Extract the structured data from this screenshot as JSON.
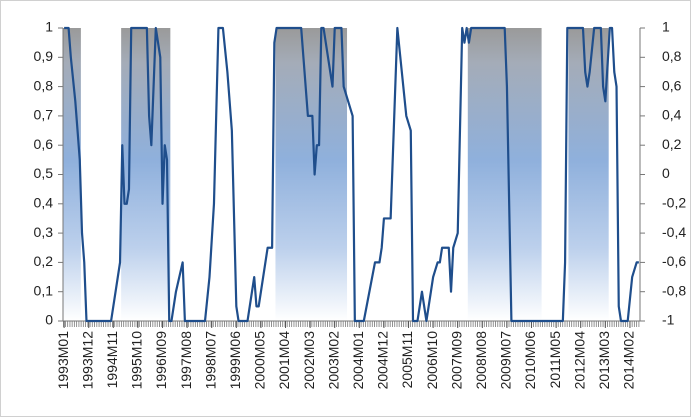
{
  "chart_data": {
    "type": "line",
    "x": [
      "1993M01",
      "1993M03",
      "1993M04",
      "1993M06",
      "1993M08",
      "1993M09",
      "1993M10",
      "1993M11",
      "1994M10",
      "1995M02",
      "1995M03",
      "1995M04",
      "1995M05",
      "1995M06",
      "1995M07",
      "1996M02",
      "1996M03",
      "1996M04",
      "1996M06",
      "1996M08",
      "1996M09",
      "1996M10",
      "1996M11",
      "1996M12",
      "1997M01",
      "1997M03",
      "1997M06",
      "1997M07",
      "1998M04",
      "1998M06",
      "1998M08",
      "1998M10",
      "1998M12",
      "1999M02",
      "1999M04",
      "1999M06",
      "1999M07",
      "1999M11",
      "2000M01",
      "2000M02",
      "2000M03",
      "2000M04",
      "2000M08",
      "2000M10",
      "2000M11",
      "2000M12",
      "2001M11",
      "2001M12",
      "2002M02",
      "2002M04",
      "2002M05",
      "2002M06",
      "2002M07",
      "2002M08",
      "2002M09",
      "2002M12",
      "2003M01",
      "2003M02",
      "2003M05",
      "2003M06",
      "2003M10",
      "2003M11",
      "2004M03",
      "2004M08",
      "2004M10",
      "2004M11",
      "2004M12",
      "2005M03",
      "2005M06",
      "2005M08",
      "2005M10",
      "2005M12",
      "2006M01",
      "2006M03",
      "2006M05",
      "2006M07",
      "2006M08",
      "2006M10",
      "2006M12",
      "2007M01",
      "2007M02",
      "2007M05",
      "2007M06",
      "2007M07",
      "2007M09",
      "2007M11",
      "2007M12",
      "2008M01",
      "2008M02",
      "2008M03",
      "2009M06",
      "2009M07",
      "2009M09",
      "2011M08",
      "2011M09",
      "2011M10",
      "2012M05",
      "2012M06",
      "2012M07",
      "2012M08",
      "2012M10",
      "2013M01",
      "2013M02",
      "2013M03",
      "2013M05",
      "2013M06",
      "2013M07",
      "2013M08",
      "2013M09",
      "2013M10",
      "2014M01",
      "2014M03",
      "2014M05",
      "2014M06"
    ],
    "values": [
      1,
      1,
      0.9,
      0.75,
      0.55,
      0.3,
      0.2,
      0,
      0,
      0.2,
      0.6,
      0.4,
      0.4,
      0.45,
      1,
      1,
      0.7,
      0.6,
      1,
      0.9,
      0.4,
      0.6,
      0.55,
      0,
      0,
      0.1,
      0.2,
      0,
      0,
      0.15,
      0.4,
      1,
      1,
      0.85,
      0.65,
      0.05,
      0,
      0,
      0.1,
      0.15,
      0.05,
      0.05,
      0.25,
      0.25,
      0.95,
      1,
      1,
      0.9,
      0.7,
      0.7,
      0.5,
      0.6,
      0.6,
      1,
      1,
      0.85,
      0.8,
      1,
      1,
      0.8,
      0.7,
      0,
      0,
      0.2,
      0.2,
      0.25,
      0.35,
      0.35,
      1,
      0.85,
      0.7,
      0.65,
      0,
      0,
      0.1,
      0,
      0.05,
      0.15,
      0.2,
      0.2,
      0.25,
      0.25,
      0.1,
      0.25,
      0.3,
      1,
      0.95,
      1,
      0.95,
      1,
      1,
      0.8,
      0,
      0,
      0.2,
      1,
      1,
      0.85,
      0.8,
      0.85,
      1,
      1,
      0.8,
      0.75,
      1,
      1,
      0.85,
      0.8,
      0.05,
      0,
      0,
      0.15,
      0.2,
      0.2
    ],
    "color": "#1f4e8c",
    "bands": [
      {
        "start": "1993M01",
        "end": "1993M08"
      },
      {
        "start": "1995M03",
        "end": "1996M12"
      },
      {
        "start": "2000M12",
        "end": "2003M07"
      },
      {
        "start": "2008M02",
        "end": "2010M10"
      },
      {
        "start": "2011M11",
        "end": "2013M04"
      }
    ],
    "xlim": [
      "1993M01",
      "2014M06"
    ],
    "xticks": [
      "1993M01",
      "1993M12",
      "1994M11",
      "1995M10",
      "1996M09",
      "1997M08",
      "1998M07",
      "1999M06",
      "2000M05",
      "2001M04",
      "2002M03",
      "2003M02",
      "2004M01",
      "2004M12",
      "2005M11",
      "2006M10",
      "2007M09",
      "2008M08",
      "2009M07",
      "2010M06",
      "2011M05",
      "2012M04",
      "2013M03",
      "2014M02"
    ],
    "ylim": [
      0,
      1
    ],
    "yticks": [
      0,
      {
        "value": 0.1,
        "label": "0,1"
      },
      {
        "value": 0.2,
        "label": "0,2"
      },
      {
        "value": 0.3,
        "label": "0,3"
      },
      {
        "value": 0.4,
        "label": "0,4"
      },
      {
        "value": 0.5,
        "label": "0,5"
      },
      {
        "value": 0.6,
        "label": "0,6"
      },
      {
        "value": 0.7,
        "label": "0,7"
      },
      {
        "value": 0.8,
        "label": "0,8"
      },
      {
        "value": 0.9,
        "label": "0,9"
      },
      1
    ],
    "y2lim": [
      -1,
      1
    ],
    "y2ticks": [
      -1,
      {
        "value": -0.8,
        "label": "-0,8"
      },
      {
        "value": -0.6,
        "label": "-0,6"
      },
      {
        "value": -0.4,
        "label": "-0,4"
      },
      {
        "value": -0.2,
        "label": "-0,2"
      },
      0,
      {
        "value": 0.2,
        "label": "0,2"
      },
      {
        "value": 0.4,
        "label": "0,4"
      },
      {
        "value": 0.6,
        "label": "0,6"
      },
      {
        "value": 0.8,
        "label": "0,8"
      },
      1
    ]
  }
}
